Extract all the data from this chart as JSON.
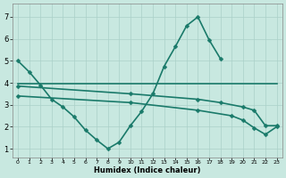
{
  "xlabel": "Humidex (Indice chaleur)",
  "xlim": [
    -0.5,
    23.5
  ],
  "ylim": [
    0.6,
    7.6
  ],
  "xticks": [
    0,
    1,
    2,
    3,
    4,
    5,
    6,
    7,
    8,
    9,
    10,
    11,
    12,
    13,
    14,
    15,
    16,
    17,
    18,
    19,
    20,
    21,
    22,
    23
  ],
  "yticks": [
    1,
    2,
    3,
    4,
    5,
    6,
    7
  ],
  "bg_color": "#c8e8e0",
  "grid_major_color": "#aad0c8",
  "grid_minor_color": "#b8dcd4",
  "line_color": "#1a7a6a",
  "lines": [
    {
      "x": [
        0,
        1,
        2,
        3,
        4,
        5,
        6,
        7,
        8,
        9,
        10,
        11,
        12,
        13,
        14,
        15,
        16,
        17,
        18
      ],
      "y": [
        5.0,
        4.5,
        3.9,
        3.25,
        2.9,
        2.45,
        1.85,
        1.4,
        1.0,
        1.3,
        2.05,
        2.7,
        3.5,
        4.75,
        5.65,
        6.6,
        7.0,
        5.95,
        5.1
      ],
      "marker": "D",
      "markersize": 2.5,
      "linewidth": 1.2
    },
    {
      "x": [
        0,
        23
      ],
      "y": [
        3.95,
        3.95
      ],
      "marker": null,
      "markersize": 0,
      "linewidth": 1.2
    },
    {
      "x": [
        0,
        10,
        16,
        18,
        20,
        21,
        22,
        23
      ],
      "y": [
        3.85,
        3.5,
        3.25,
        3.1,
        2.9,
        2.75,
        2.05,
        2.05
      ],
      "marker": "D",
      "markersize": 2.5,
      "linewidth": 1.2
    },
    {
      "x": [
        0,
        10,
        16,
        19,
        20,
        21,
        22,
        23
      ],
      "y": [
        3.4,
        3.1,
        2.75,
        2.5,
        2.3,
        1.95,
        1.65,
        2.0
      ],
      "marker": "D",
      "markersize": 2.5,
      "linewidth": 1.2
    }
  ]
}
